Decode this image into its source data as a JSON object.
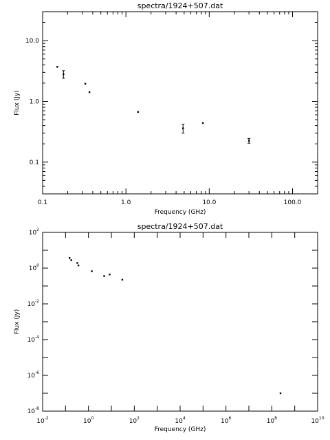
{
  "chart_data": [
    {
      "type": "scatter",
      "title": "spectra/1924+507.dat",
      "xlabel": "Frequency (GHz)",
      "ylabel": "Flux (Jy)",
      "xscale": "log",
      "yscale": "log",
      "xlim": [
        0.1,
        200
      ],
      "ylim": [
        0.03,
        30
      ],
      "x_ticks": [
        0.1,
        1.0,
        10.0,
        100.0
      ],
      "x_tick_labels": [
        "0.1",
        "1.0",
        "10.0",
        "100.0"
      ],
      "y_ticks": [
        0.1,
        1.0,
        10.0
      ],
      "y_tick_labels": [
        "0.1",
        "1.0",
        "10.0"
      ],
      "grid": false,
      "points": [
        {
          "x": 0.15,
          "y": 3.7,
          "err": 0
        },
        {
          "x": 0.178,
          "y": 2.8,
          "err": 0.4
        },
        {
          "x": 0.325,
          "y": 1.95,
          "err": 0
        },
        {
          "x": 0.365,
          "y": 1.42,
          "err": 0
        },
        {
          "x": 1.4,
          "y": 0.67,
          "err": 0
        },
        {
          "x": 4.85,
          "y": 0.36,
          "err": 0.06
        },
        {
          "x": 8.4,
          "y": 0.44,
          "err": 0
        },
        {
          "x": 30.0,
          "y": 0.225,
          "err": 0.02
        }
      ]
    },
    {
      "type": "scatter",
      "title": "spectra/1924+507.dat",
      "xlabel": "Frequency (GHz)",
      "ylabel": "Flux (Jy)",
      "xscale": "log",
      "yscale": "log",
      "xlim": [
        0.01,
        10000000000.0
      ],
      "ylim": [
        1e-08,
        100
      ],
      "x_tick_exponents": [
        -2,
        0,
        2,
        4,
        6,
        8,
        10
      ],
      "y_tick_exponents": [
        -8,
        -6,
        -4,
        -2,
        0,
        2
      ],
      "tick_base": "10",
      "grid": false,
      "points": [
        {
          "x": 0.15,
          "y": 3.7
        },
        {
          "x": 0.178,
          "y": 2.8
        },
        {
          "x": 0.325,
          "y": 1.95
        },
        {
          "x": 0.365,
          "y": 1.42
        },
        {
          "x": 1.4,
          "y": 0.67
        },
        {
          "x": 4.85,
          "y": 0.36
        },
        {
          "x": 8.4,
          "y": 0.44
        },
        {
          "x": 30.0,
          "y": 0.225
        },
        {
          "x": 240000000.0,
          "y": 1e-07
        }
      ]
    }
  ]
}
